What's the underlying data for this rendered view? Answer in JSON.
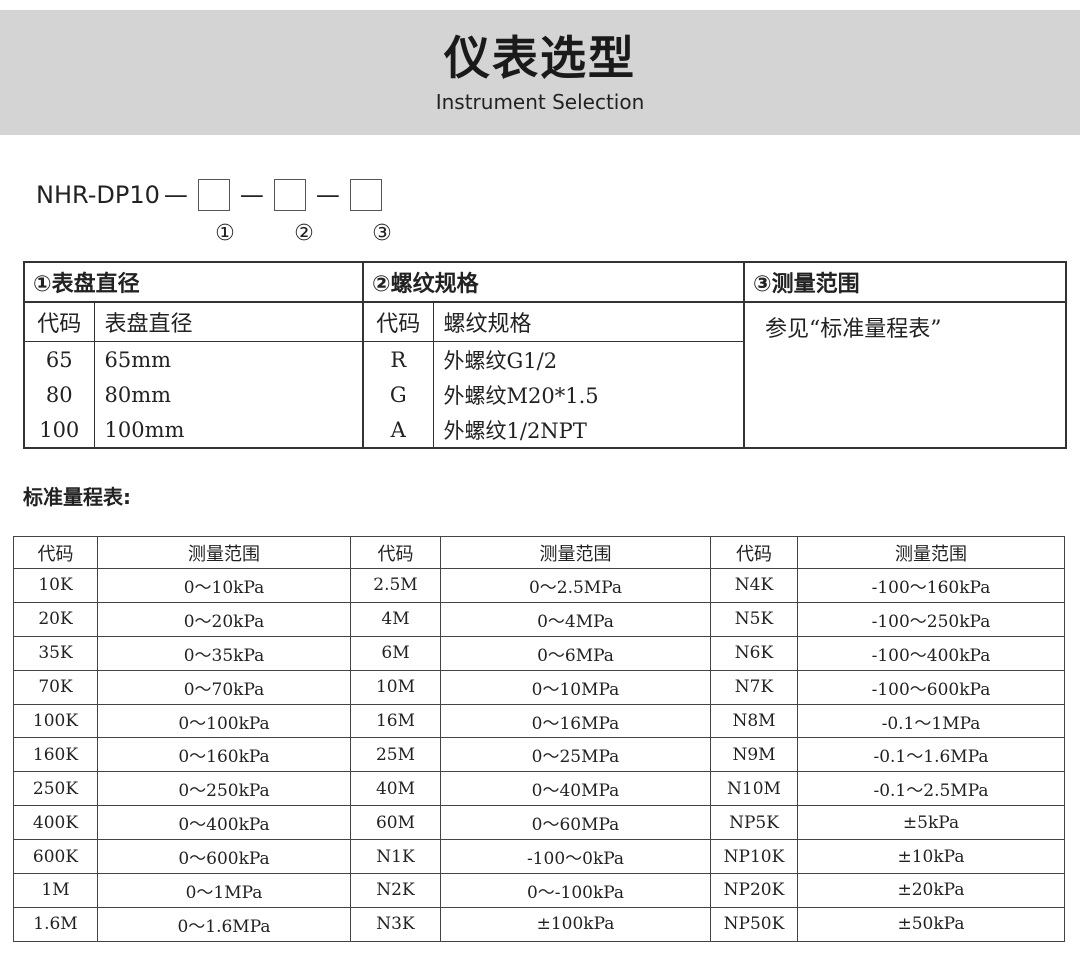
{
  "header": {
    "title": "仪表选型",
    "subtitle": "Instrument Selection"
  },
  "model": {
    "prefix": "NHR-DP10",
    "separator": "—",
    "slots": [
      "①",
      "②",
      "③"
    ]
  },
  "spec_table": {
    "sections": [
      {
        "heading": "①表盘直径",
        "columns": [
          "代码",
          "表盘直径"
        ],
        "rows": [
          [
            "65",
            "65mm"
          ],
          [
            "80",
            "80mm"
          ],
          [
            "100",
            "100mm"
          ]
        ]
      },
      {
        "heading": "②螺纹规格",
        "columns": [
          "代码",
          "螺纹规格"
        ],
        "rows": [
          [
            "R",
            "外螺纹G1/2"
          ],
          [
            "G",
            "外螺纹M20*1.5"
          ],
          [
            "A",
            "外螺纹1/2NPT"
          ]
        ]
      },
      {
        "heading": "③测量范围",
        "note": "参见“标准量程表”"
      }
    ]
  },
  "range_table": {
    "title": "标准量程表:",
    "header": [
      "代码",
      "测量范围",
      "代码",
      "测量范围",
      "代码",
      "测量范围"
    ],
    "rows": [
      [
        "10K",
        "0～10kPa",
        "2.5M",
        "0～2.5MPa",
        "N4K",
        "-100～160kPa"
      ],
      [
        "20K",
        "0～20kPa",
        "4M",
        "0～4MPa",
        "N5K",
        "-100～250kPa"
      ],
      [
        "35K",
        "0～35kPa",
        "6M",
        "0～6MPa",
        "N6K",
        "-100～400kPa"
      ],
      [
        "70K",
        "0～70kPa",
        "10M",
        "0～10MPa",
        "N7K",
        "-100～600kPa"
      ],
      [
        "100K",
        "0～100kPa",
        "16M",
        "0～16MPa",
        "N8M",
        "-0.1～1MPa"
      ],
      [
        "160K",
        "0～160kPa",
        "25M",
        "0～25MPa",
        "N9M",
        "-0.1～1.6MPa"
      ],
      [
        "250K",
        "0～250kPa",
        "40M",
        "0～40MPa",
        "N10M",
        "-0.1～2.5MPa"
      ],
      [
        "400K",
        "0～400kPa",
        "60M",
        "0～60MPa",
        "NP5K",
        "±5kPa"
      ],
      [
        "600K",
        "0～600kPa",
        "N1K",
        "-100～0kPa",
        "NP10K",
        "±10kPa"
      ],
      [
        "1M",
        "0～1MPa",
        "N2K",
        "0～-100kPa",
        "NP20K",
        "±20kPa"
      ],
      [
        "1.6M",
        "0～1.6MPa",
        "N3K",
        "±100kPa",
        "NP50K",
        "±50kPa"
      ]
    ]
  }
}
